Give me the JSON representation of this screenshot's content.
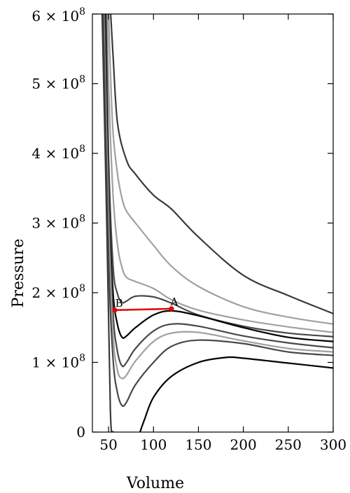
{
  "chart_data": {
    "type": "line",
    "title": "",
    "xlabel": "Volume",
    "ylabel": "Pressure",
    "xlim": [
      32,
      300
    ],
    "ylim": [
      0,
      600000000
    ],
    "grid": false,
    "x_ticks": [
      {
        "value": 50,
        "label": "50"
      },
      {
        "value": 100,
        "label": "100"
      },
      {
        "value": 150,
        "label": "150"
      },
      {
        "value": 200,
        "label": "200"
      },
      {
        "value": 250,
        "label": "250"
      },
      {
        "value": 300,
        "label": "300"
      }
    ],
    "y_ticks": [
      {
        "value": 0,
        "mantissa": "0",
        "exponent": ""
      },
      {
        "value": 100000000,
        "mantissa": "1 × 10",
        "exponent": "8"
      },
      {
        "value": 200000000,
        "mantissa": "2 × 10",
        "exponent": "8"
      },
      {
        "value": 300000000,
        "mantissa": "3 × 10",
        "exponent": "8"
      },
      {
        "value": 400000000,
        "mantissa": "4 × 10",
        "exponent": "8"
      },
      {
        "value": 500000000,
        "mantissa": "5 × 10",
        "exponent": "8"
      },
      {
        "value": 600000000,
        "mantissa": "6 × 10",
        "exponent": "8"
      }
    ],
    "series": [
      {
        "color": "#3a3a3a",
        "x": [
          52.3,
          55,
          60,
          70,
          80,
          100,
          120,
          150,
          200,
          250,
          300
        ],
        "y": [
          600000000,
          540000000,
          443000000,
          390000000,
          370000000,
          340000000,
          320000000,
          280000000,
          225000000,
          196000000,
          170000000
        ]
      },
      {
        "color": "#a0a0a0",
        "x": [
          50.1,
          52,
          55,
          60,
          65,
          70,
          80,
          100,
          120,
          150,
          200,
          250,
          300
        ],
        "y": [
          600000000,
          520000000,
          430000000,
          370000000,
          335000000,
          317000000,
          300000000,
          268000000,
          238000000,
          209000000,
          180000000,
          165000000,
          155000000
        ]
      },
      {
        "color": "#a0a0a0",
        "x": [
          48.7,
          50,
          55,
          60,
          65,
          70,
          80,
          100,
          120,
          150,
          200,
          250,
          300
        ],
        "y": [
          600000000,
          500000000,
          340000000,
          268000000,
          236000000,
          222000000,
          216000000,
          206000000,
          190000000,
          175000000,
          161000000,
          151000000,
          143000000
        ]
      },
      {
        "color": "#484848",
        "x": [
          47.2,
          50,
          55,
          60,
          65,
          70,
          80,
          100,
          120,
          150,
          200,
          250,
          300
        ],
        "y": [
          600000000,
          395000000,
          238000000,
          198000000,
          186000000,
          188000000,
          195000000,
          194000000,
          185000000,
          168000000,
          152000000,
          142000000,
          137000000
        ]
      },
      {
        "color": "#000000",
        "x": [
          46,
          50,
          55,
          60,
          65,
          70,
          80,
          100,
          120,
          150,
          200,
          250,
          300
        ],
        "y": [
          600000000,
          345000000,
          200000000,
          154000000,
          136000000,
          138000000,
          150000000,
          168000000,
          174000000,
          167000000,
          150000000,
          136000000,
          130000000
        ]
      },
      {
        "color": "#484848",
        "x": [
          45.3,
          50,
          55,
          60,
          65,
          70,
          80,
          100,
          120,
          150,
          200,
          250,
          300
        ],
        "y": [
          600000000,
          330000000,
          170000000,
          115000000,
          95000000,
          100000000,
          120000000,
          145000000,
          155000000,
          152000000,
          138000000,
          128000000,
          121000000
        ]
      },
      {
        "color": "#a0a0a0",
        "x": [
          44.6,
          50,
          55,
          60,
          65,
          70,
          80,
          100,
          120,
          150,
          200,
          250,
          300
        ],
        "y": [
          600000000,
          300000000,
          140000000,
          88000000,
          77000000,
          82000000,
          102000000,
          130000000,
          142000000,
          143000000,
          131000000,
          120000000,
          115000000
        ]
      },
      {
        "color": "#484848",
        "x": [
          44,
          50,
          55,
          60,
          65,
          70,
          80,
          100,
          120,
          150,
          200,
          250,
          300
        ],
        "y": [
          600000000,
          250000000,
          105000000,
          56000000,
          38000000,
          43000000,
          68000000,
          100000000,
          123000000,
          132000000,
          127000000,
          115000000,
          110000000
        ]
      },
      {
        "color": "#3a3a3a",
        "x": [
          42.8,
          48,
          52,
          55
        ],
        "y": [
          600000000,
          300000000,
          30000000,
          0
        ]
      },
      {
        "color": "#000000",
        "x": [
          85,
          90,
          100,
          120,
          150,
          180,
          200,
          250,
          300
        ],
        "y": [
          0,
          18000000,
          50000000,
          80000000,
          100000000,
          107000000,
          106000000,
          99000000,
          92000000
        ]
      }
    ],
    "annotations": [
      {
        "label": "B",
        "x": 57,
        "y": 175000000
      },
      {
        "label": "A",
        "x": 120,
        "y": 177000000
      }
    ],
    "connector": {
      "color": "#e60000",
      "from": "B",
      "to": "A"
    }
  }
}
